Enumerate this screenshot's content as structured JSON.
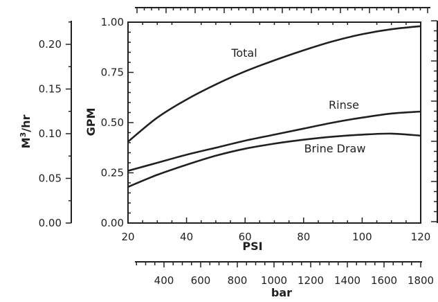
{
  "chart_data": {
    "type": "line",
    "x_label": "PSI",
    "y_label": "GPM",
    "y2_label_base": "M",
    "y2_label_sup": "3",
    "y2_label_rest": "/hr",
    "x2_label": "bar",
    "x_range": [
      20,
      120
    ],
    "y_range": [
      0,
      1.0
    ],
    "x_ticks": [
      "20",
      "40",
      "60",
      "80",
      "100",
      "120"
    ],
    "y_ticks": [
      "0.00",
      "0.25",
      "0.50",
      "0.75",
      "1.00"
    ],
    "y2_ticks": [
      "0.00",
      "0.05",
      "0.10",
      "0.15",
      "0.20"
    ],
    "x2_ticks": [
      "400",
      "600",
      "800",
      "1000",
      "1200",
      "1400",
      "1600",
      "1800"
    ],
    "series": [
      {
        "name": "Total",
        "x": [
          20,
          30,
          40,
          50,
          60,
          70,
          80,
          90,
          100,
          110,
          120
        ],
        "y": [
          0.405,
          0.525,
          0.615,
          0.69,
          0.755,
          0.81,
          0.86,
          0.905,
          0.94,
          0.965,
          0.98
        ]
      },
      {
        "name": "Rinse",
        "x": [
          20,
          30,
          40,
          50,
          60,
          70,
          80,
          90,
          100,
          110,
          120
        ],
        "y": [
          0.26,
          0.3,
          0.34,
          0.375,
          0.41,
          0.44,
          0.47,
          0.5,
          0.525,
          0.545,
          0.555
        ]
      },
      {
        "name": "Brine Draw",
        "x": [
          20,
          30,
          40,
          50,
          60,
          70,
          80,
          90,
          100,
          110,
          120
        ],
        "y": [
          0.18,
          0.24,
          0.29,
          0.335,
          0.37,
          0.395,
          0.415,
          0.43,
          0.44,
          0.445,
          0.435
        ]
      }
    ]
  }
}
